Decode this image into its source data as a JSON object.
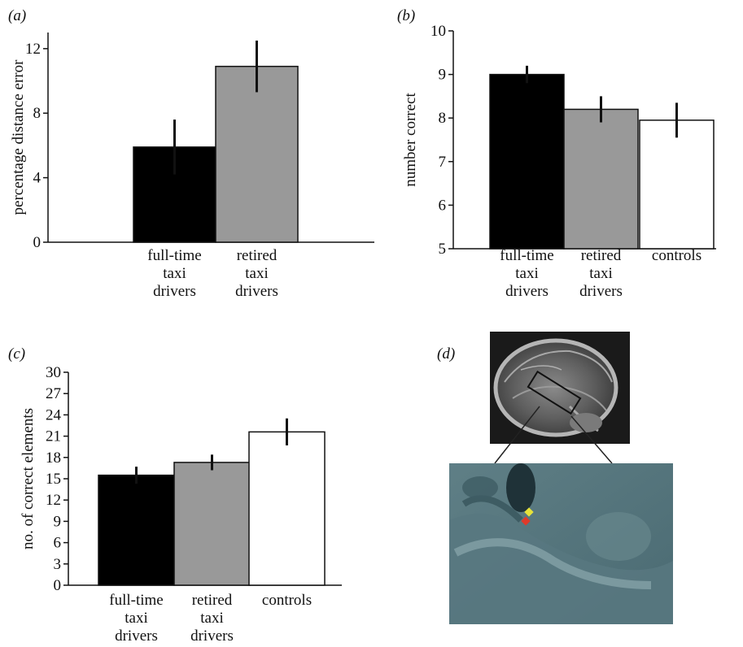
{
  "chart_data": [
    {
      "panel": "(a)",
      "type": "bar",
      "ylabel": "percentage distance error",
      "ylim": [
        0,
        13
      ],
      "yticks": [
        0,
        4,
        8,
        12
      ],
      "categories": [
        [
          "full-time",
          "taxi",
          "drivers"
        ],
        [
          "retired",
          "taxi",
          "drivers"
        ]
      ],
      "values": [
        5.9,
        10.9
      ],
      "errors": [
        [
          4.2,
          7.6
        ],
        [
          9.3,
          12.5
        ]
      ],
      "colors": [
        "#000000",
        "#999999"
      ]
    },
    {
      "panel": "(b)",
      "type": "bar",
      "ylabel": "number correct",
      "ylim": [
        5,
        10
      ],
      "yticks": [
        5,
        6,
        7,
        8,
        9,
        10
      ],
      "categories": [
        [
          "full-time",
          "taxi",
          "drivers"
        ],
        [
          "retired",
          "taxi",
          "drivers"
        ],
        [
          "controls"
        ]
      ],
      "values": [
        9.0,
        8.2,
        7.95
      ],
      "errors": [
        [
          8.8,
          9.2
        ],
        [
          7.9,
          8.5
        ],
        [
          7.55,
          8.35
        ]
      ],
      "colors": [
        "#000000",
        "#999999",
        "#ffffff"
      ]
    },
    {
      "panel": "(c)",
      "type": "bar",
      "ylabel": "no. of correct elements",
      "ylim": [
        0,
        30
      ],
      "yticks": [
        0,
        3,
        6,
        9,
        12,
        15,
        18,
        21,
        24,
        27,
        30
      ],
      "categories": [
        [
          "full-time",
          "taxi",
          "drivers"
        ],
        [
          "retired",
          "taxi",
          "drivers"
        ],
        [
          "controls"
        ]
      ],
      "values": [
        15.5,
        17.3,
        21.6
      ],
      "errors": [
        [
          14.3,
          16.7
        ],
        [
          16.2,
          18.4
        ],
        [
          19.7,
          23.5
        ]
      ],
      "colors": [
        "#000000",
        "#999999",
        "#ffffff"
      ]
    }
  ],
  "image_panel": {
    "panel": "(d)"
  }
}
